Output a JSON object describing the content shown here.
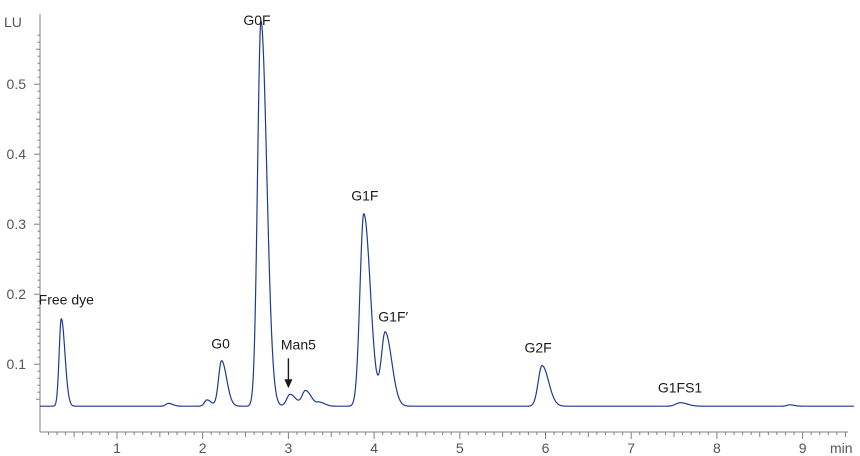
{
  "chart_data": {
    "type": "line",
    "title": "",
    "xlabel": "min",
    "ylabel": "LU",
    "xlim": [
      0,
      9.5
    ],
    "ylim": [
      0,
      0.6
    ],
    "x_ticks": [
      1,
      2,
      3,
      4,
      5,
      6,
      7,
      8,
      9
    ],
    "y_ticks": [
      0.1,
      0.2,
      0.3,
      0.4,
      0.5
    ],
    "baseline": 0.04,
    "grid": false,
    "color": "#1f3a93",
    "peaks": [
      {
        "label": "Free dye",
        "x": 0.35,
        "y": 0.165,
        "width": 0.025
      },
      {
        "label": "",
        "x": 1.6,
        "y": 0.044,
        "width": 0.03
      },
      {
        "label": "",
        "x": 2.05,
        "y": 0.049,
        "width": 0.03
      },
      {
        "label": "G0",
        "x": 2.22,
        "y": 0.105,
        "width": 0.035
      },
      {
        "label": "G0F",
        "x": 2.68,
        "y": 0.59,
        "width": 0.04
      },
      {
        "label": "",
        "x": 3.02,
        "y": 0.057,
        "width": 0.04
      },
      {
        "label": "",
        "x": 3.2,
        "y": 0.062,
        "width": 0.04
      },
      {
        "label": "",
        "x": 3.37,
        "y": 0.045,
        "width": 0.035
      },
      {
        "label": "G1F",
        "x": 3.88,
        "y": 0.315,
        "width": 0.045
      },
      {
        "label": "G1F′",
        "x": 4.13,
        "y": 0.145,
        "width": 0.045
      },
      {
        "label": "G2F",
        "x": 5.96,
        "y": 0.098,
        "width": 0.045
      },
      {
        "label": "G1FS1",
        "x": 7.57,
        "y": 0.045,
        "width": 0.05
      },
      {
        "label": "",
        "x": 8.85,
        "y": 0.042,
        "width": 0.03
      }
    ],
    "annotations": [
      {
        "label": "Man5",
        "x": 3.0,
        "y": 0.057,
        "arrow": true
      }
    ]
  }
}
